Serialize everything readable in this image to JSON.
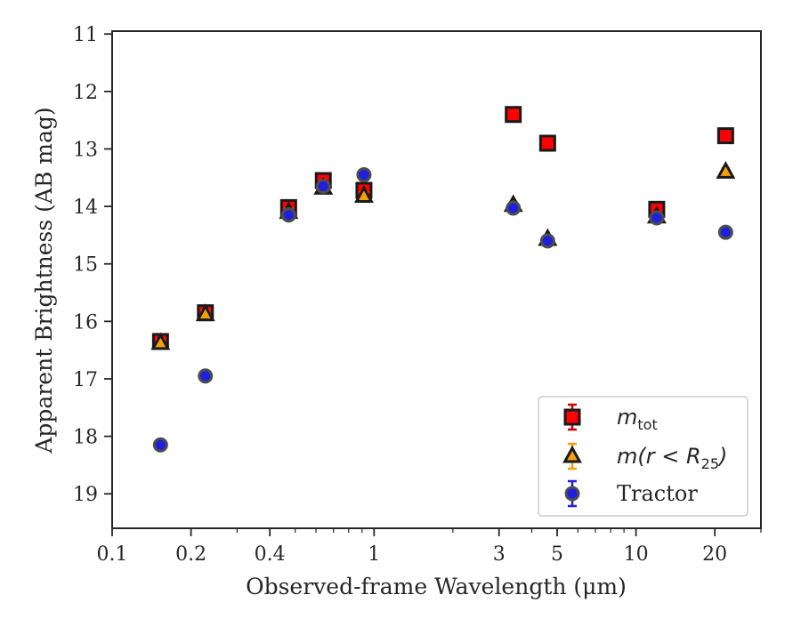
{
  "chart_data": {
    "type": "scatter",
    "title": "",
    "xlabel": "Observed-frame Wavelength (μm)",
    "ylabel": "Apparent Brightness (AB mag)",
    "x_scale": "log",
    "xlim": [
      0.1,
      30
    ],
    "ylim": [
      19.6,
      10.95
    ],
    "y_inverted": true,
    "x_ticks": [
      0.1,
      0.2,
      0.4,
      1,
      3,
      5,
      10,
      20
    ],
    "x_tick_labels": [
      "0.1",
      "0.2",
      "0.4",
      "1",
      "3",
      "5",
      "10",
      "20"
    ],
    "y_ticks": [
      11,
      12,
      13,
      14,
      15,
      16,
      17,
      18,
      19
    ],
    "y_tick_labels": [
      "11",
      "12",
      "13",
      "14",
      "15",
      "16",
      "17",
      "18",
      "19"
    ],
    "grid": false,
    "legend_position": "bottom-right",
    "series": [
      {
        "name": "m_tot",
        "label_base": "m",
        "label_sub": "tot",
        "marker": "square",
        "color": "#ff0000",
        "edge_color": "#1a1a1a",
        "error_color": "#cc0000",
        "x": [
          0.153,
          0.227,
          0.472,
          0.64,
          0.915,
          3.4,
          4.6,
          12.0,
          22.0
        ],
        "y": [
          16.35,
          15.85,
          14.02,
          13.55,
          13.72,
          12.4,
          12.9,
          14.05,
          12.77
        ]
      },
      {
        "name": "m(r < R25)",
        "label_base": "m(r < R",
        "label_sub": "25",
        "label_end": ")",
        "marker": "triangle",
        "color": "#f5a00a",
        "edge_color": "#1a1a1a",
        "error_color": "#f5a00a",
        "x": [
          0.153,
          0.227,
          0.472,
          0.64,
          0.915,
          3.4,
          4.6,
          12.0,
          22.0
        ],
        "y": [
          16.38,
          15.88,
          14.1,
          13.68,
          13.82,
          13.98,
          14.57,
          14.18,
          13.4
        ]
      },
      {
        "name": "Tractor",
        "marker": "circle",
        "color": "#1f1fe0",
        "edge_color": "#4d4d4d",
        "error_color": "#1f1fe0",
        "x": [
          0.153,
          0.227,
          0.472,
          0.64,
          0.915,
          3.4,
          4.6,
          12.0,
          22.0
        ],
        "y": [
          18.15,
          16.95,
          14.15,
          13.65,
          13.45,
          14.03,
          14.6,
          14.2,
          14.45
        ]
      }
    ]
  }
}
